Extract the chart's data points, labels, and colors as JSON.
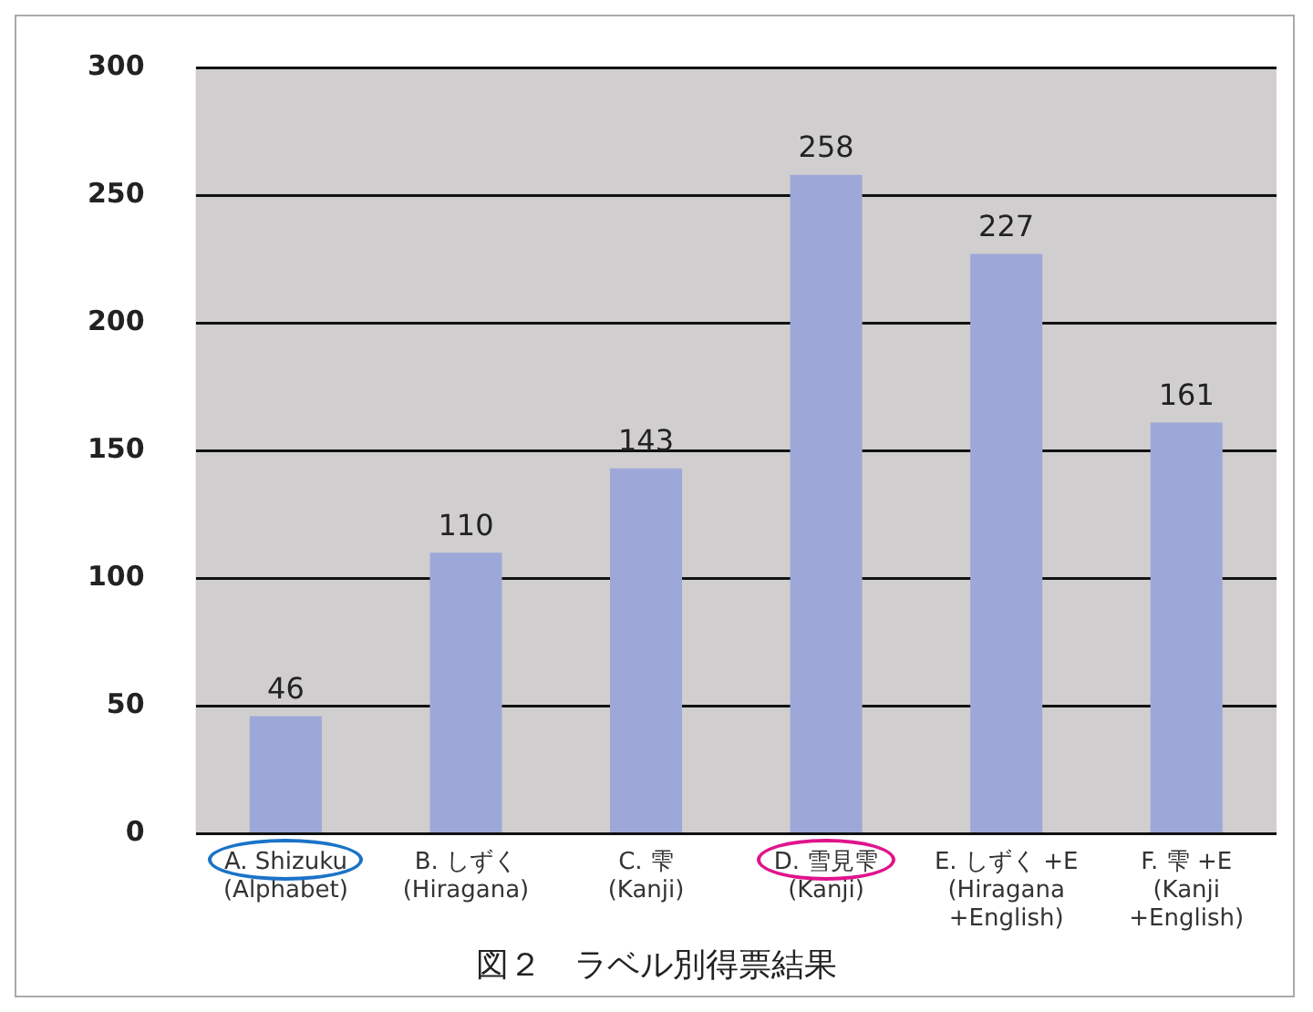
{
  "chart_data": {
    "type": "bar",
    "title": "図２　ラベル別得票結果",
    "categories": [
      "A. Shizuku\n(Alphabet)",
      "B. しずく\n(Hiragana)",
      "C. 雫\n(Kanji)",
      "D. 雪見雫\n(Kanji)",
      "E. しずく +E\n(Hiragana\n+English)",
      "F. 雫 +E\n(Kanji\n+English)"
    ],
    "values": [
      46,
      110,
      143,
      258,
      227,
      161
    ],
    "color": "#9ea8d8",
    "ylim": [
      0,
      300
    ],
    "yticks": [
      0,
      50,
      100,
      150,
      200,
      250,
      300
    ],
    "grid": "y",
    "data_labels": true
  }
}
